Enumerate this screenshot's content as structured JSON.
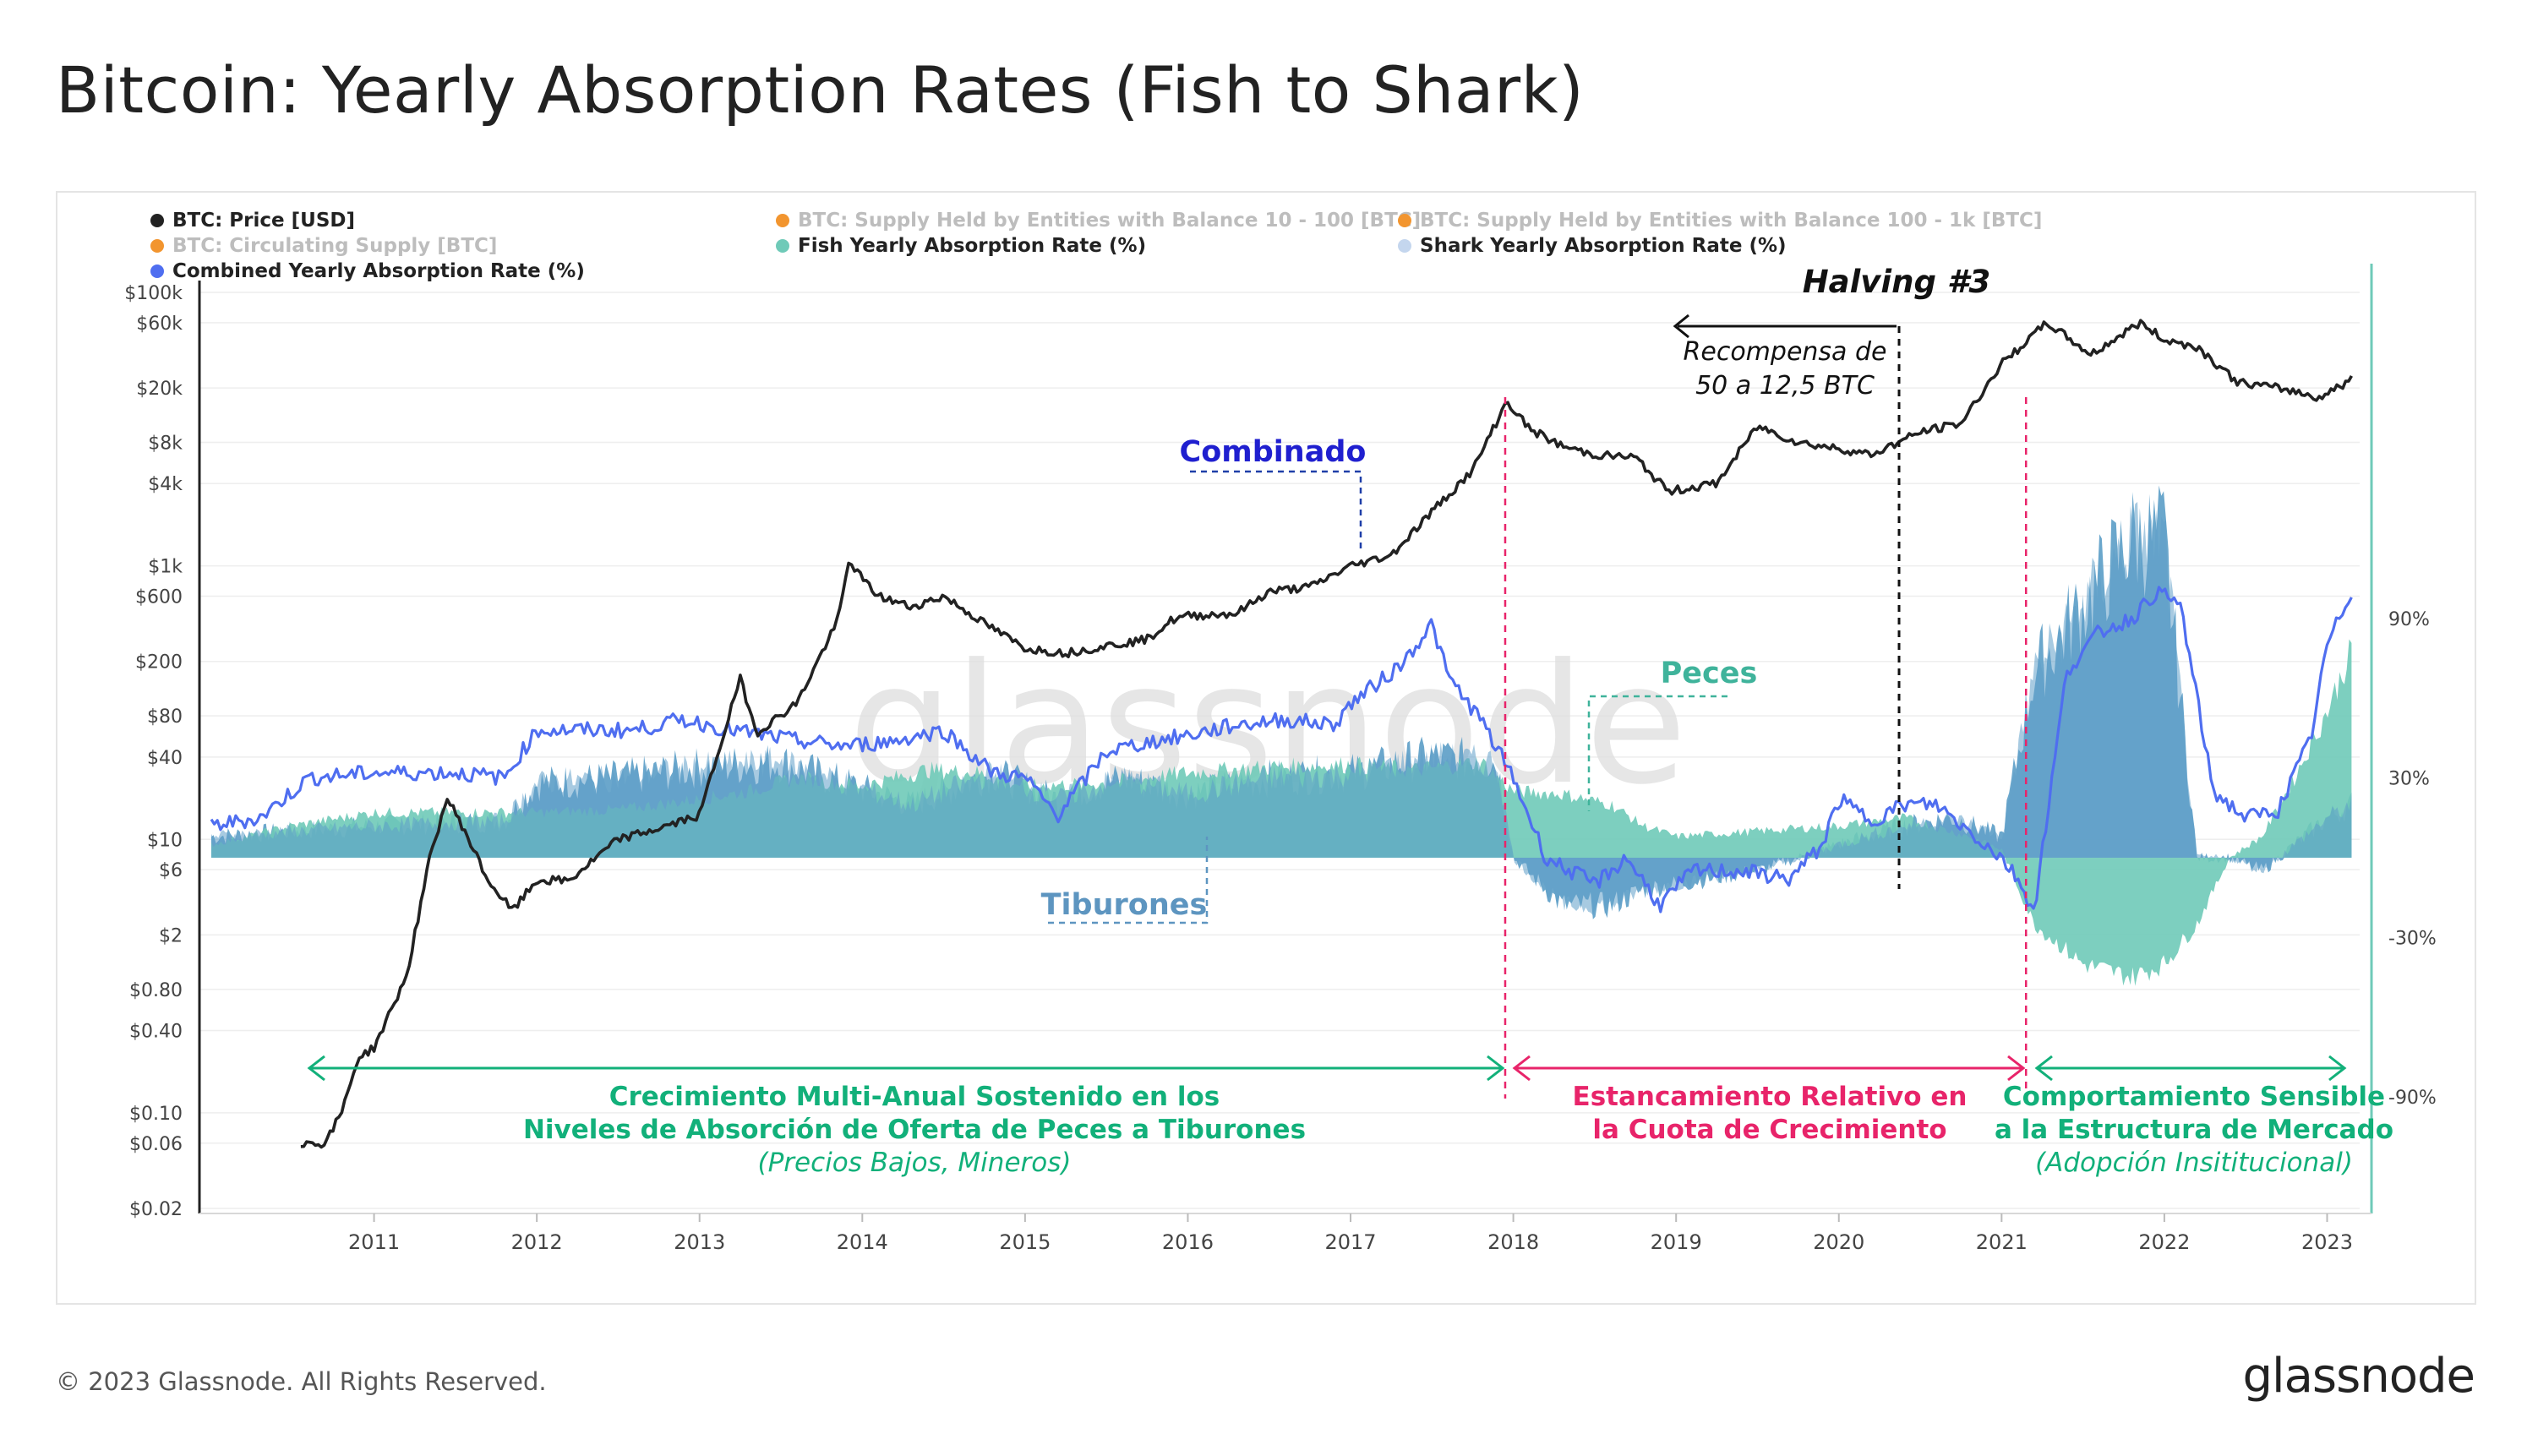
{
  "title": "Bitcoin: Yearly Absorption Rates (Fish to Shark)",
  "footer": {
    "copyright": "© 2023 Glassnode. All Rights Reserved.",
    "brand": "glassnode"
  },
  "watermark": "glassnode",
  "colors": {
    "price": "#222222",
    "combined": "#4f6ef0",
    "fish": "#6fcab8",
    "shark": "#5e9fc8",
    "pink": "#e8246a",
    "green": "#12b07a",
    "blue_label": "#1f1fcf",
    "legend_orange": "#f2952f"
  },
  "legend": [
    {
      "label": "BTC: Price [USD]",
      "color": "#222222",
      "muted": false
    },
    {
      "label": "BTC: Supply Held by Entities with Balance 10 - 100 [BTC]",
      "color": "#f2952f",
      "muted": true
    },
    {
      "label": "BTC: Supply Held by Entities with Balance 100 - 1k [BTC]",
      "color": "#f2952f",
      "muted": true
    },
    {
      "label": "BTC: Circulating Supply [BTC]",
      "color": "#f2952f",
      "muted": true
    },
    {
      "label": "Fish Yearly Absorption Rate (%)",
      "color": "#6fcab8",
      "muted": false
    },
    {
      "label": "Shark Yearly Absorption Rate (%)",
      "color": "#c4d6ee",
      "muted": false
    },
    {
      "label": "Combined Yearly Absorption Rate (%)",
      "color": "#4f6ef0",
      "muted": false
    }
  ],
  "annotations": {
    "halving": "Halving #3",
    "reward_line1": "Recompensa de",
    "reward_line2": "50 a 12,5 BTC",
    "combinado": "Combinado",
    "peces": "Peces",
    "tiburones": "Tiburones",
    "phase1_line1": "Crecimiento Multi-Anual Sostenido en los",
    "phase1_line2": "Niveles de Absorción de Oferta de Peces a Tiburones",
    "phase1_line3": "(Precios Bajos, Mineros)",
    "phase2_line1": "Estancamiento Relativo en",
    "phase2_line2": "la Cuota de Crecimiento",
    "phase3_line1": "Comportamiento Sensible",
    "phase3_line2": "a la Estructura de Mercado",
    "phase3_line3": "(Adopción Insititucional)"
  },
  "chart_data": {
    "type": "line",
    "x_ticks": [
      "2011",
      "2012",
      "2013",
      "2014",
      "2015",
      "2016",
      "2017",
      "2018",
      "2019",
      "2020",
      "2021",
      "2022",
      "2023"
    ],
    "x_range": [
      2010.0,
      2023.2
    ],
    "y_left": {
      "scale": "log",
      "unit": "USD",
      "range": [
        0.02,
        100000
      ],
      "ticks": [
        {
          "value": 100000,
          "label": "$100k"
        },
        {
          "value": 60000,
          "label": "$60k"
        },
        {
          "value": 20000,
          "label": "$20k"
        },
        {
          "value": 8000,
          "label": "$8k"
        },
        {
          "value": 4000,
          "label": "$4k"
        },
        {
          "value": 1000,
          "label": "$1k"
        },
        {
          "value": 600,
          "label": "$600"
        },
        {
          "value": 200,
          "label": "$200"
        },
        {
          "value": 80,
          "label": "$80"
        },
        {
          "value": 40,
          "label": "$40"
        },
        {
          "value": 10,
          "label": "$10"
        },
        {
          "value": 6,
          "label": "$6"
        },
        {
          "value": 2,
          "label": "$2"
        },
        {
          "value": 0.8,
          "label": "$0.80"
        },
        {
          "value": 0.4,
          "label": "$0.40"
        },
        {
          "value": 0.1,
          "label": "$0.10"
        },
        {
          "value": 0.06,
          "label": "$0.06"
        },
        {
          "value": 0.02,
          "label": "$0.02"
        }
      ]
    },
    "y_right": {
      "unit": "%",
      "range": [
        -90,
        90
      ],
      "ticks": [
        {
          "value": 90,
          "label": "90%"
        },
        {
          "value": 30,
          "label": "30%"
        },
        {
          "value": -30,
          "label": "-30%"
        },
        {
          "value": -90,
          "label": "-90%"
        }
      ]
    },
    "series": [
      {
        "name": "BTC: Price [USD]",
        "axis": "left",
        "x": [
          2010.55,
          2010.7,
          2010.8,
          2010.9,
          2011.0,
          2011.2,
          2011.35,
          2011.45,
          2011.55,
          2011.7,
          2011.85,
          2012.0,
          2012.2,
          2012.5,
          2012.75,
          2013.0,
          2013.25,
          2013.35,
          2013.6,
          2013.85,
          2013.92,
          2014.0,
          2014.1,
          2014.3,
          2014.5,
          2014.75,
          2015.0,
          2015.25,
          2015.5,
          2015.75,
          2015.9,
          2016.0,
          2016.3,
          2016.5,
          2016.75,
          2017.0,
          2017.25,
          2017.5,
          2017.75,
          2017.96,
          2018.1,
          2018.3,
          2018.5,
          2018.75,
          2018.95,
          2019.25,
          2019.5,
          2019.75,
          2020.0,
          2020.2,
          2020.5,
          2020.75,
          2021.0,
          2021.28,
          2021.55,
          2021.85,
          2022.0,
          2022.2,
          2022.45,
          2022.75,
          2022.95,
          2023.15
        ],
        "values": [
          0.06,
          0.06,
          0.1,
          0.25,
          0.3,
          1.0,
          8,
          20,
          12,
          5,
          3,
          5,
          5,
          10,
          12,
          15,
          150,
          60,
          100,
          400,
          1100,
          800,
          600,
          500,
          600,
          380,
          250,
          230,
          260,
          290,
          400,
          430,
          450,
          650,
          700,
          1000,
          1200,
          2500,
          5000,
          16000,
          10000,
          7500,
          6500,
          6200,
          3500,
          4000,
          10500,
          8000,
          7200,
          6500,
          9500,
          11000,
          30000,
          60000,
          35000,
          60000,
          45000,
          40000,
          22000,
          19500,
          17000,
          23000
        ]
      },
      {
        "name": "Combined Yearly Absorption Rate (%)",
        "axis": "right",
        "x": [
          2010.0,
          2010.3,
          2010.6,
          2011.0,
          2011.5,
          2011.8,
          2012.0,
          2012.3,
          2012.6,
          2012.9,
          2013.2,
          2013.6,
          2013.9,
          2014.2,
          2014.5,
          2014.8,
          2015.0,
          2015.2,
          2015.5,
          2015.8,
          2016.0,
          2016.3,
          2016.6,
          2016.9,
          2017.0,
          2017.3,
          2017.5,
          2017.6,
          2017.8,
          2018.0,
          2018.2,
          2018.5,
          2018.7,
          2018.9,
          2019.1,
          2019.4,
          2019.7,
          2019.9,
          2020.0,
          2020.2,
          2020.4,
          2020.6,
          2020.8,
          2021.0,
          2021.1,
          2021.2,
          2021.4,
          2021.6,
          2021.8,
          2021.95,
          2022.1,
          2022.3,
          2022.5,
          2022.7,
          2022.9,
          2023.0,
          2023.15
        ],
        "values": [
          12,
          15,
          30,
          32,
          32,
          30,
          48,
          48,
          48,
          52,
          48,
          44,
          42,
          44,
          48,
          32,
          30,
          16,
          40,
          44,
          46,
          50,
          52,
          50,
          58,
          72,
          88,
          68,
          52,
          30,
          0,
          -10,
          0,
          -18,
          -5,
          -5,
          -8,
          5,
          22,
          14,
          20,
          20,
          10,
          0,
          -8,
          -20,
          70,
          85,
          90,
          100,
          95,
          25,
          15,
          18,
          45,
          80,
          100
        ]
      },
      {
        "name": "Fish Yearly Absorption Rate (%)",
        "axis": "right",
        "x": [
          2010.0,
          2010.5,
          2011.0,
          2011.5,
          2012.0,
          2012.5,
          2013.0,
          2013.3,
          2013.6,
          2014.0,
          2014.4,
          2014.7,
          2015.0,
          2015.5,
          2016.0,
          2016.5,
          2017.0,
          2017.4,
          2017.8,
          2018.0,
          2018.3,
          2018.6,
          2018.8,
          2019.0,
          2019.5,
          2020.0,
          2020.4,
          2020.8,
          2021.0,
          2021.2,
          2021.5,
          2021.8,
          2022.0,
          2022.2,
          2022.4,
          2022.6,
          2022.8,
          2023.0,
          2023.15
        ],
        "values": [
          5,
          12,
          17,
          17,
          17,
          18,
          22,
          25,
          30,
          27,
          33,
          32,
          27,
          28,
          32,
          34,
          35,
          33,
          36,
          25,
          24,
          20,
          12,
          8,
          10,
          12,
          15,
          8,
          3,
          -25,
          -40,
          -45,
          -40,
          -25,
          0,
          8,
          30,
          55,
          78
        ]
      },
      {
        "name": "Shark Yearly Absorption Rate (%)",
        "axis": "right",
        "x": [
          2010.0,
          2011.0,
          2011.8,
          2012.0,
          2012.5,
          2013.0,
          2013.5,
          2013.9,
          2014.3,
          2014.8,
          2015.2,
          2015.6,
          2016.0,
          2016.5,
          2017.0,
          2017.5,
          2017.9,
          2018.0,
          2018.3,
          2018.6,
          2018.8,
          2019.0,
          2019.5,
          2020.0,
          2020.4,
          2020.7,
          2021.0,
          2021.2,
          2021.5,
          2021.8,
          2022.0,
          2022.2,
          2022.4,
          2022.6,
          2022.8,
          2023.0,
          2023.15
        ],
        "values": [
          8,
          12,
          14,
          28,
          30,
          34,
          36,
          28,
          20,
          32,
          22,
          30,
          24,
          30,
          32,
          38,
          36,
          0,
          -18,
          -18,
          -12,
          -10,
          -5,
          5,
          12,
          15,
          8,
          70,
          95,
          120,
          120,
          0,
          0,
          -5,
          5,
          15,
          20
        ]
      }
    ],
    "vlines": [
      {
        "x": 2017.95,
        "style": "pink"
      },
      {
        "x": 2021.15,
        "style": "pink"
      },
      {
        "x": 2020.37,
        "style": "black"
      }
    ]
  }
}
